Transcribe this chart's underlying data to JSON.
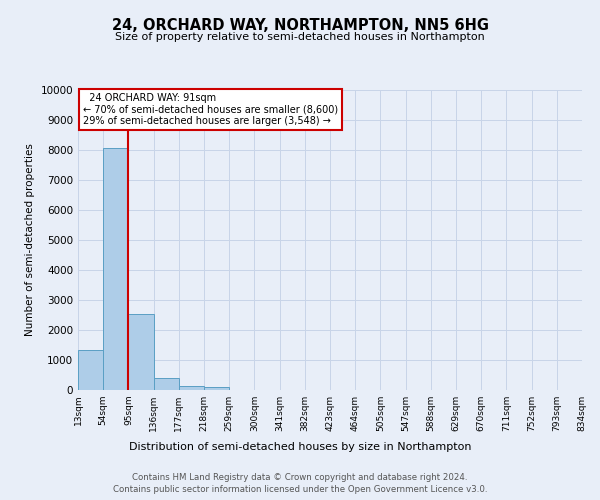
{
  "title": "24, ORCHARD WAY, NORTHAMPTON, NN5 6HG",
  "subtitle": "Size of property relative to semi-detached houses in Northampton",
  "xlabel_bottom": "Distribution of semi-detached houses by size in Northampton",
  "ylabel": "Number of semi-detached properties",
  "footer_line1": "Contains HM Land Registry data © Crown copyright and database right 2024.",
  "footer_line2": "Contains public sector information licensed under the Open Government Licence v3.0.",
  "bin_labels": [
    "13sqm",
    "54sqm",
    "95sqm",
    "136sqm",
    "177sqm",
    "218sqm",
    "259sqm",
    "300sqm",
    "341sqm",
    "382sqm",
    "423sqm",
    "464sqm",
    "505sqm",
    "547sqm",
    "588sqm",
    "629sqm",
    "670sqm",
    "711sqm",
    "752sqm",
    "793sqm",
    "834sqm"
  ],
  "bar_values": [
    1320,
    8050,
    2530,
    390,
    145,
    95,
    0,
    0,
    0,
    0,
    0,
    0,
    0,
    0,
    0,
    0,
    0,
    0,
    0,
    0
  ],
  "bar_color": "#aecde8",
  "bar_edge_color": "#5a9fc4",
  "property_line_x": 2.0,
  "annotation_title": "24 ORCHARD WAY: 91sqm",
  "annotation_line1": "← 70% of semi-detached houses are smaller (8,600)",
  "annotation_line2": "29% of semi-detached houses are larger (3,548) →",
  "annotation_box_color": "#ffffff",
  "annotation_border_color": "#cc0000",
  "vline_color": "#cc0000",
  "grid_color": "#c8d4e8",
  "background_color": "#e8eef8",
  "ylim": [
    0,
    10000
  ],
  "yticks": [
    0,
    1000,
    2000,
    3000,
    4000,
    5000,
    6000,
    7000,
    8000,
    9000,
    10000
  ]
}
